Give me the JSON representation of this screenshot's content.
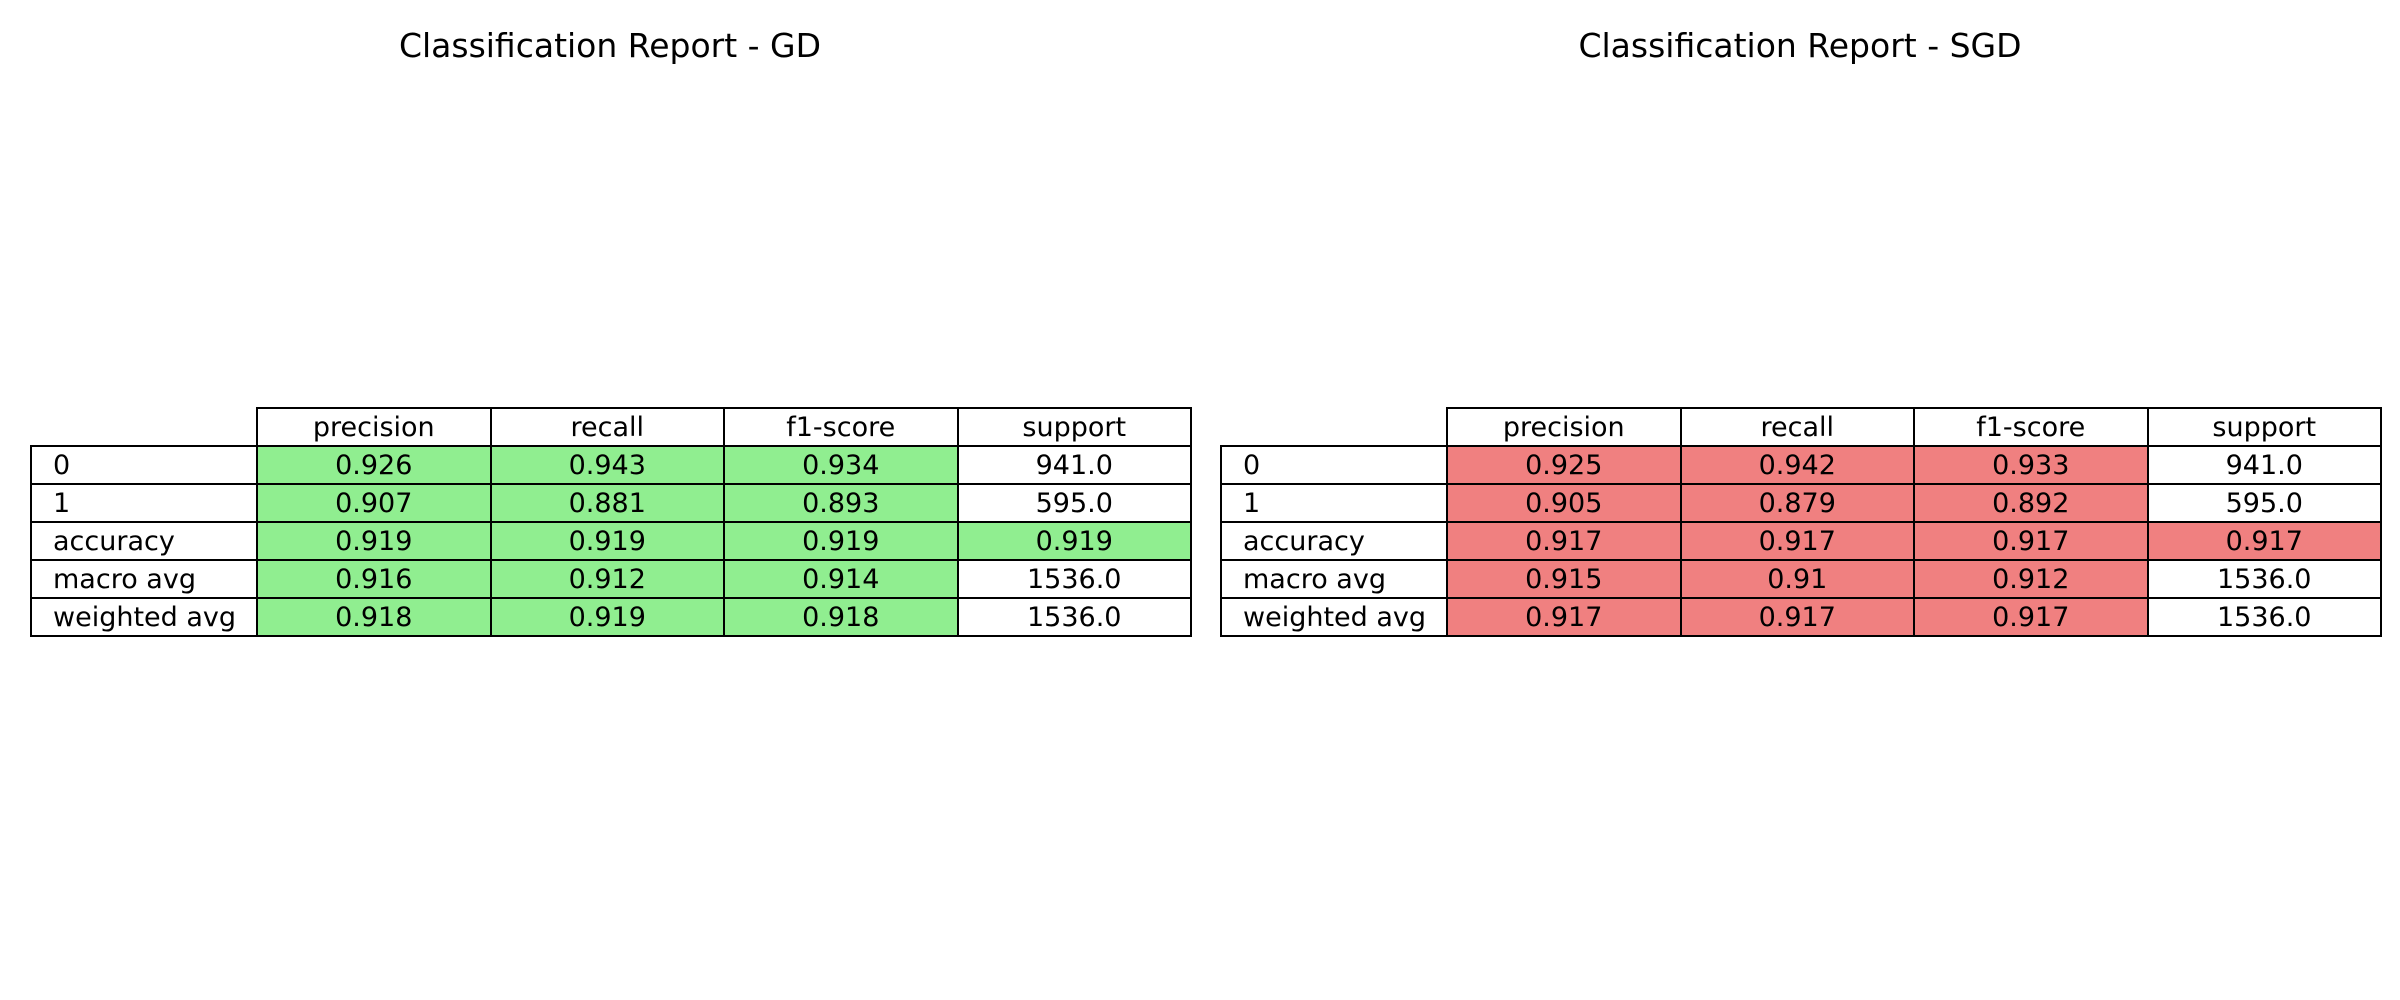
{
  "colors": {
    "gd_highlight": "#90ee90",
    "sgd_highlight": "#f08080",
    "plain_cell": "#ffffff",
    "border": "#000000"
  },
  "chart_data": [
    {
      "type": "table",
      "title": "Classification Report - GD",
      "columns": [
        "precision",
        "recall",
        "f1-score",
        "support"
      ],
      "rows": [
        "0",
        "1",
        "accuracy",
        "macro avg",
        "weighted avg"
      ],
      "cells": [
        [
          "0.926",
          "0.943",
          "0.934",
          "941.0"
        ],
        [
          "0.907",
          "0.881",
          "0.893",
          "595.0"
        ],
        [
          "0.919",
          "0.919",
          "0.919",
          "0.919"
        ],
        [
          "0.916",
          "0.912",
          "0.914",
          "1536.0"
        ],
        [
          "0.918",
          "0.919",
          "0.918",
          "1536.0"
        ]
      ],
      "highlighted": [
        [
          true,
          true,
          true,
          false
        ],
        [
          true,
          true,
          true,
          false
        ],
        [
          true,
          true,
          true,
          true
        ],
        [
          true,
          true,
          true,
          false
        ],
        [
          true,
          true,
          true,
          false
        ]
      ],
      "highlight_color": "#90ee90"
    },
    {
      "type": "table",
      "title": "Classification Report - SGD",
      "columns": [
        "precision",
        "recall",
        "f1-score",
        "support"
      ],
      "rows": [
        "0",
        "1",
        "accuracy",
        "macro avg",
        "weighted avg"
      ],
      "cells": [
        [
          "0.925",
          "0.942",
          "0.933",
          "941.0"
        ],
        [
          "0.905",
          "0.879",
          "0.892",
          "595.0"
        ],
        [
          "0.917",
          "0.917",
          "0.917",
          "0.917"
        ],
        [
          "0.915",
          "0.91",
          "0.912",
          "1536.0"
        ],
        [
          "0.917",
          "0.917",
          "0.917",
          "1536.0"
        ]
      ],
      "highlighted": [
        [
          true,
          true,
          true,
          false
        ],
        [
          true,
          true,
          true,
          false
        ],
        [
          true,
          true,
          true,
          true
        ],
        [
          true,
          true,
          true,
          false
        ],
        [
          true,
          true,
          true,
          false
        ]
      ],
      "highlight_color": "#f08080"
    }
  ]
}
